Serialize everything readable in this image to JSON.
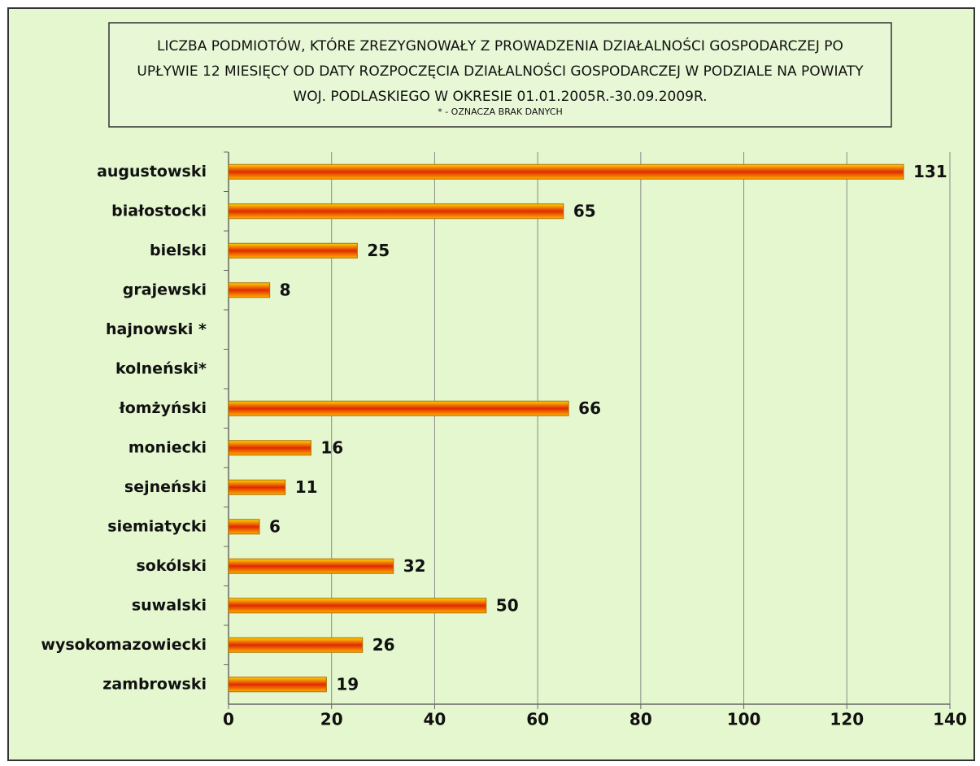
{
  "chart_data": {
    "type": "bar",
    "orientation": "horizontal",
    "title": "LICZBA  PODMIOTÓW, KTÓRE ZREZYGNOWAŁY Z PROWADZENIA DZIAŁALNOŚCI GOSPODARCZEJ PO UPŁYWIE 12 MIESIĘCY OD DATY ROZPOCZĘCIA DZIAŁALNOŚCI GOSPODARCZEJ W PODZIALE NA POWIATY WOJ. PODLASKIEGO W OKRESIE 01.01.2005R.-30.09.2009R.",
    "subtitle": "* - OZNACZA BRAK DANYCH",
    "categories": [
      "augustowski",
      "białostocki",
      "bielski",
      "grajewski",
      "hajnowski *",
      "kolneński*",
      "łomżyński",
      "moniecki",
      "sejneński",
      "siemiatycki",
      "sokólski",
      "suwalski",
      "wysokomazowiecki",
      "zambrowski"
    ],
    "values": [
      131,
      65,
      25,
      8,
      null,
      null,
      66,
      16,
      11,
      6,
      32,
      50,
      26,
      19
    ],
    "color": "#e02a00",
    "xlim": [
      0,
      140
    ],
    "xticks": [
      0,
      20,
      40,
      60,
      80,
      100,
      120,
      140
    ],
    "grid": true
  }
}
